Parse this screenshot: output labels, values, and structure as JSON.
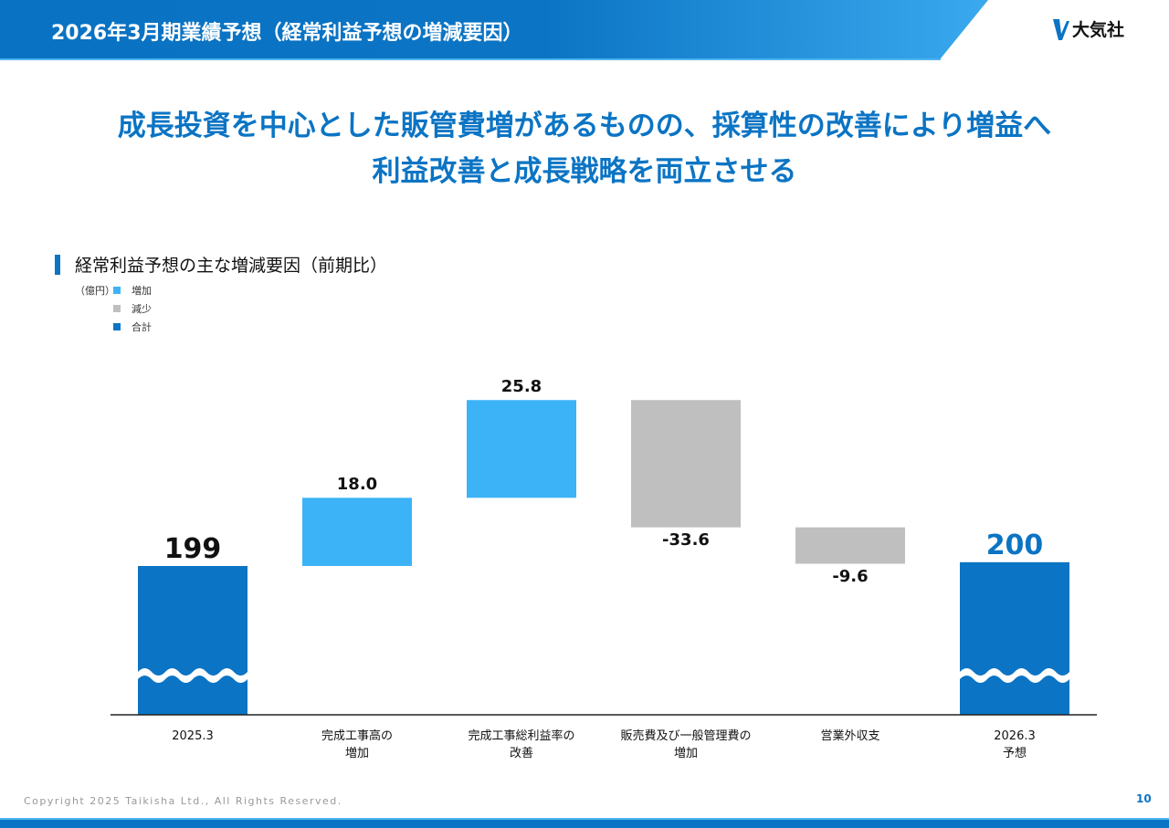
{
  "header": {
    "title": "2026年3月期業績予想（経常利益予想の増減要因）",
    "logo": "大気社"
  },
  "headline": [
    "成長投資を中心とした販管費増があるものの、採算性の改善により増益へ",
    "利益改善と成長戦略を両立させる"
  ],
  "chart_data": {
    "type": "waterfall",
    "title": "経常利益予想の主な増減要因（前期比）",
    "unit": "（億円）",
    "legend": [
      {
        "label": "増加",
        "color": "#3db3f7"
      },
      {
        "label": "減少",
        "color": "#bfbfbf"
      },
      {
        "label": "合計",
        "color": "#0b74c4"
      }
    ],
    "categories": [
      "2025.3",
      "完成工事高の\n増加",
      "完成工事総利益率の\n改善",
      "販売費及び一般管理費の\n増加",
      "営業外収支",
      "2026.3\n予想"
    ],
    "values": [
      199,
      18.0,
      25.8,
      -33.6,
      -9.6,
      200
    ],
    "kinds": [
      "total",
      "delta",
      "delta",
      "delta",
      "delta",
      "total"
    ],
    "labels": [
      "199",
      "18.0",
      "25.8",
      "-33.6",
      "-9.6",
      "200"
    ],
    "axis_break": true
  },
  "footer": {
    "copyright": "Copyright  2025 Taikisha Ltd., All Rights Reserved.",
    "page": "10"
  }
}
